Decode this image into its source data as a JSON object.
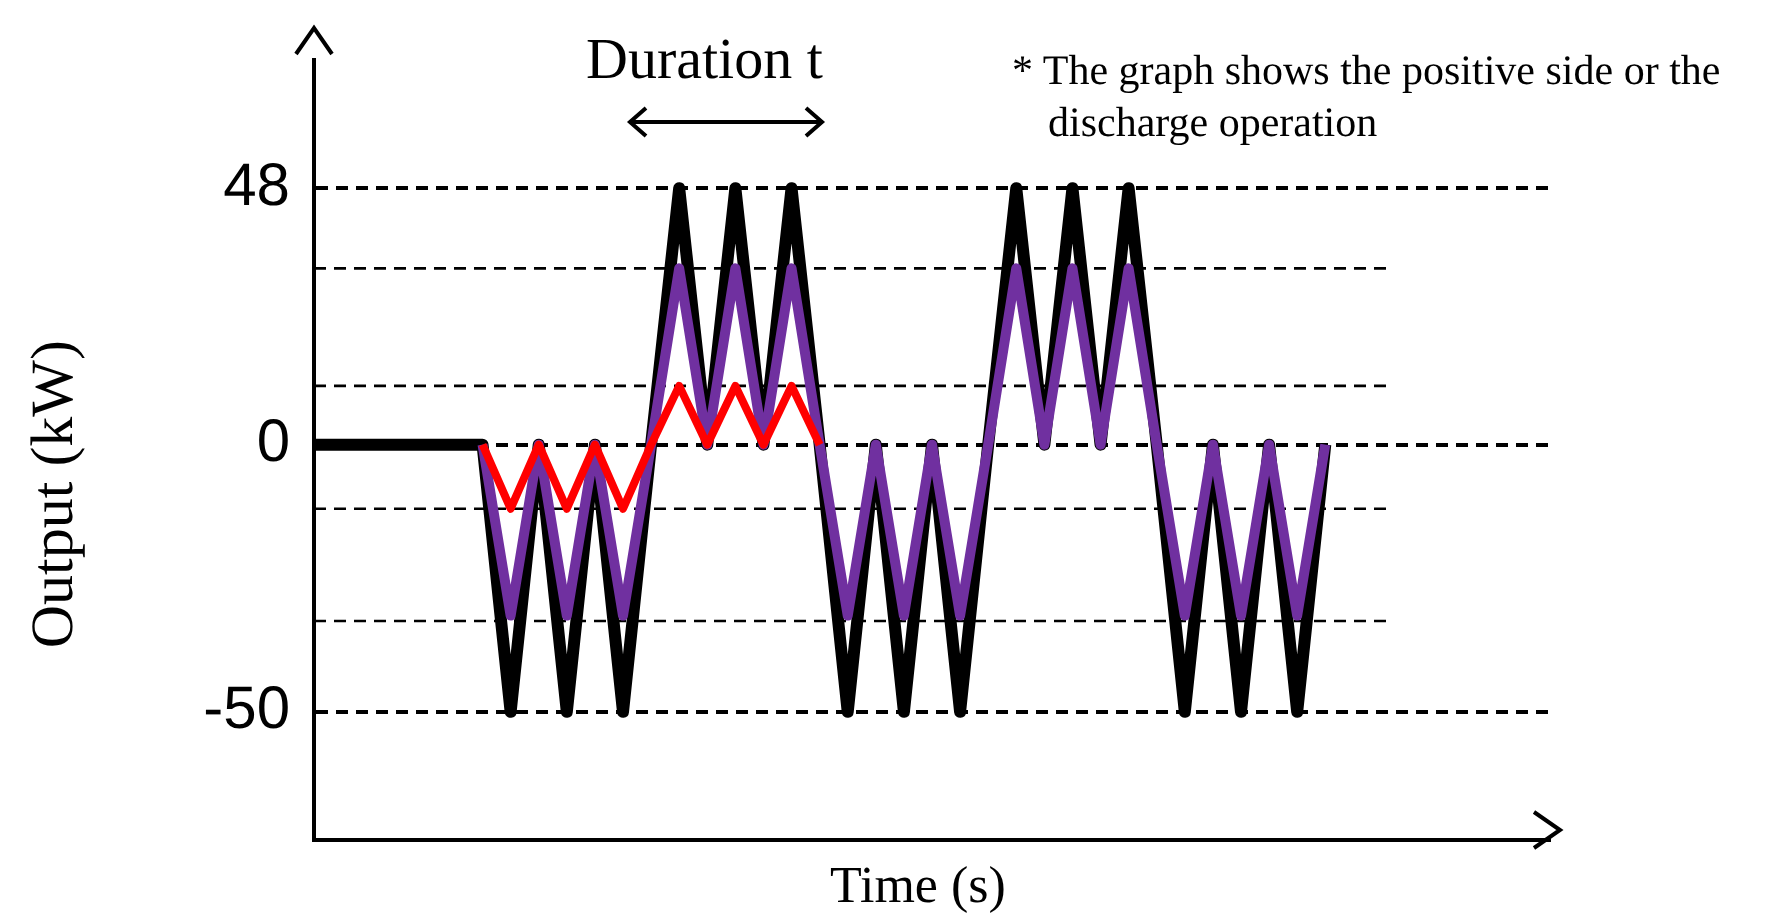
{
  "chart_data": {
    "type": "line",
    "xlabel": "Time (s)",
    "ylabel": "Output (kW)",
    "annotations": [
      "Duration t",
      "* The graph shows the positive side or the discharge operation"
    ],
    "categories": [
      null,
      null,
      null,
      null,
      null,
      null,
      null,
      null,
      null,
      null,
      null,
      null,
      null,
      null,
      null,
      null,
      null,
      null,
      null,
      null,
      null,
      null,
      null,
      null,
      null,
      null,
      null,
      null,
      null,
      null,
      null,
      null,
      null,
      null,
      null,
      null,
      null,
      null,
      null,
      null,
      null,
      null,
      null,
      null,
      null
    ],
    "series": [
      {
        "color": "#000000",
        "values": [
          0,
          0,
          0,
          0,
          0,
          0,
          0,
          -50,
          0,
          -50,
          0,
          -50,
          0,
          48,
          0,
          48,
          0,
          48,
          0,
          -50,
          0,
          -50,
          0,
          -50,
          0,
          48,
          0,
          48,
          0,
          48,
          0,
          -50,
          0,
          -50,
          0,
          -50,
          0,
          null,
          null,
          null,
          null,
          null,
          null,
          null,
          null
        ]
      },
      {
        "color": "#7030a0",
        "values": [
          null,
          null,
          null,
          null,
          null,
          null,
          0,
          -32,
          0,
          -32,
          0,
          -32,
          0,
          33,
          0,
          33,
          0,
          33,
          0,
          -32,
          0,
          -32,
          0,
          -32,
          0,
          33,
          0,
          33,
          0,
          33,
          0,
          -32,
          0,
          -32,
          0,
          -32,
          0,
          null,
          null,
          null,
          null,
          null,
          null,
          null,
          null
        ]
      },
      {
        "color": "#ff0000",
        "values": [
          null,
          null,
          null,
          null,
          null,
          null,
          0,
          -12,
          0,
          -12,
          0,
          -12,
          0,
          11,
          0,
          11,
          0,
          11,
          0,
          null,
          null,
          null,
          null,
          null,
          null,
          null,
          null,
          null,
          null,
          null,
          null,
          null,
          null,
          null,
          null,
          null,
          null,
          null,
          null,
          null,
          null,
          null,
          null,
          null,
          null
        ]
      }
    ],
    "ylim": [
      -74,
      72
    ],
    "yticks": [
      -50,
      0,
      48
    ],
    "grid": "y",
    "legend": false,
    "marker": "none",
    "line_style": "solid",
    "ref_lines": [
      {
        "axis": "y",
        "value": 33,
        "line_style": "dashed"
      },
      {
        "axis": "y",
        "value": 11,
        "line_style": "dashed"
      },
      {
        "axis": "y",
        "value": -12,
        "line_style": "dashed"
      },
      {
        "axis": "y",
        "value": -33,
        "line_style": "dashed"
      }
    ]
  }
}
